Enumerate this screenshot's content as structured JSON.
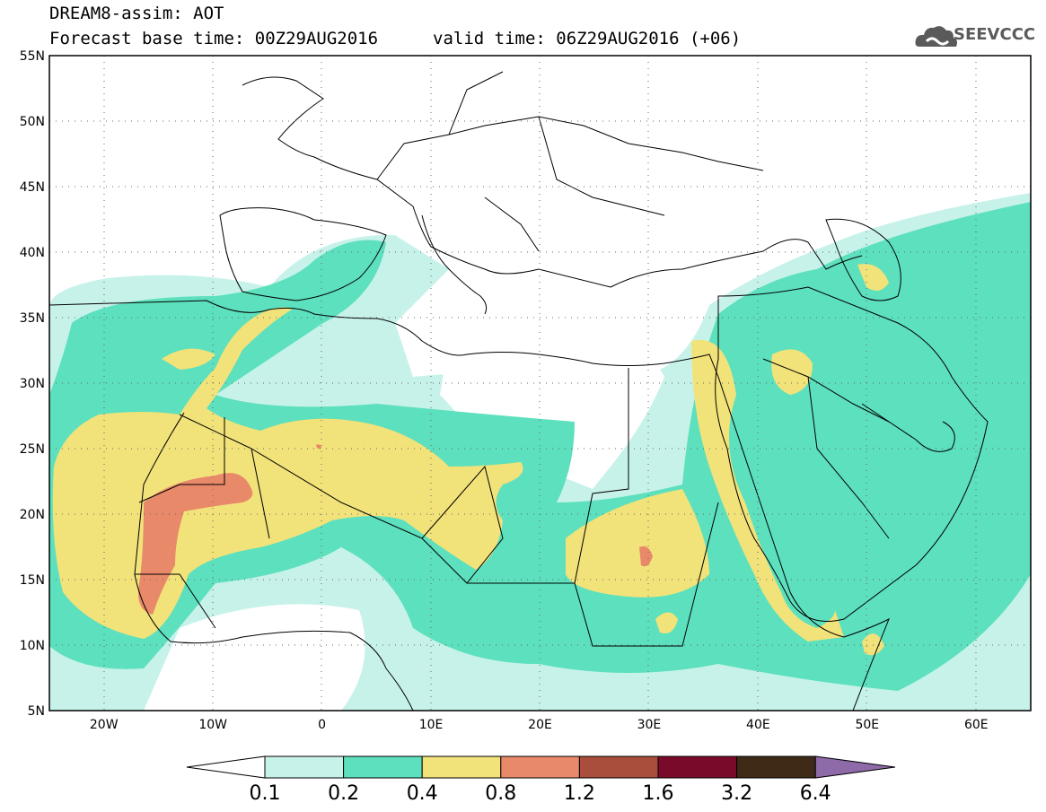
{
  "header": {
    "title": "DREAM8-assim: AOT",
    "base_time": "Forecast base time: 00Z29AUG2016",
    "valid_time": "valid time: 06Z29AUG2016 (+06)"
  },
  "logo": {
    "text": "SEEVCCC",
    "icon": "cloud-icon"
  },
  "map": {
    "lon_range": [
      -25,
      65
    ],
    "lat_range": [
      5,
      55
    ],
    "lat_ticks": [
      "5N",
      "10N",
      "15N",
      "20N",
      "25N",
      "30N",
      "35N",
      "40N",
      "45N",
      "50N",
      "55N"
    ],
    "lon_ticks": [
      "20W",
      "10W",
      "0",
      "10E",
      "20E",
      "30E",
      "40E",
      "50E",
      "60E"
    ],
    "grid": "dotted"
  },
  "legend": {
    "levels": [
      "0.1",
      "0.2",
      "0.4",
      "0.8",
      "1.2",
      "1.6",
      "3.2",
      "6.4"
    ],
    "colors": [
      "#c7f2ea",
      "#5de0bd",
      "#f2e27a",
      "#e8896a",
      "#a94d3c",
      "#7a0a2a",
      "#3e2a16",
      "#8e6aa8"
    ],
    "low_color": "#ffffff"
  }
}
